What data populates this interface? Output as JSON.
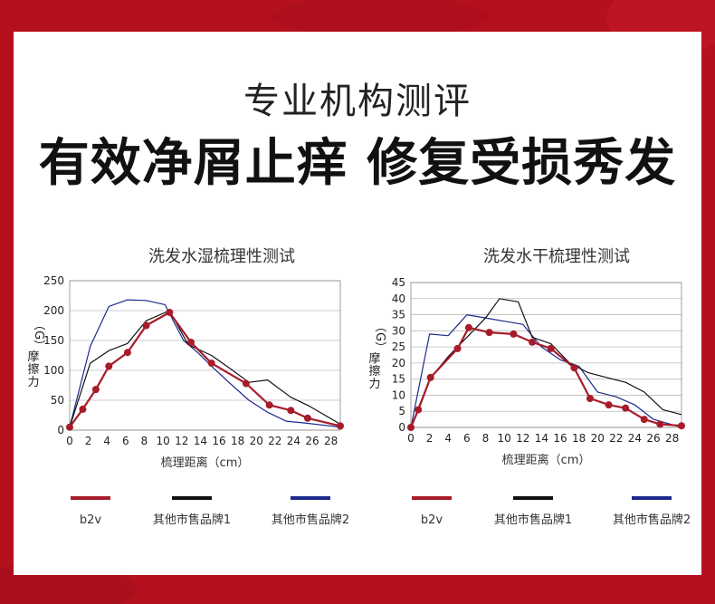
{
  "header": {
    "subtitle": "专业机构测评",
    "title": "有效净屑止痒 修复受损秀发"
  },
  "colors": {
    "background": "#b5101e",
    "b2v": "#a71c2a",
    "other1": "#111111",
    "other2": "#1d2a8c"
  },
  "chart_data": [
    {
      "type": "line",
      "title": "洗发水湿梳理性测试",
      "xlabel": "梳理距离（cm）",
      "ylabel": "摩擦力（G）",
      "ylabel_chars": [
        "摩",
        "擦",
        "力"
      ],
      "ylabel_unit": "（G）",
      "xlim": [
        0,
        29
      ],
      "ylim": [
        0,
        250
      ],
      "x_ticks": [
        0,
        2,
        4,
        6,
        8,
        10,
        12,
        14,
        16,
        18,
        20,
        22,
        24,
        26,
        28
      ],
      "y_ticks": [
        0,
        50,
        100,
        150,
        200,
        250
      ],
      "grid": "horizontal",
      "series": [
        {
          "name": "b2v",
          "color": "#a71c2a",
          "markers": true,
          "x": [
            0,
            1.4,
            2.8,
            4.2,
            6.2,
            8.2,
            10.7,
            13,
            15.2,
            18.9,
            21.4,
            23.7,
            25.5,
            29
          ],
          "y": [
            5,
            35,
            68,
            107,
            130,
            175,
            197,
            147,
            112,
            78,
            42,
            33,
            20,
            7
          ]
        },
        {
          "name": "其他市售品牌1",
          "color": "#111111",
          "markers": false,
          "x": [
            0,
            2.2,
            4.2,
            6.2,
            8.2,
            10.7,
            12.7,
            15.2,
            17.2,
            19.2,
            21.2,
            23.7,
            25.7,
            29
          ],
          "y": [
            5,
            112,
            133,
            145,
            183,
            200,
            143,
            125,
            103,
            80,
            84,
            55,
            40,
            10
          ]
        },
        {
          "name": "其他市售品牌2",
          "color": "#1d2a8c",
          "markers": false,
          "x": [
            0,
            2.2,
            4.2,
            6.2,
            8.2,
            10.2,
            12.2,
            13.7,
            15.2,
            17.2,
            19.2,
            21.2,
            23.2,
            25.2,
            29
          ],
          "y": [
            5,
            140,
            207,
            218,
            217,
            210,
            150,
            130,
            107,
            78,
            50,
            30,
            15,
            12,
            5
          ]
        }
      ]
    },
    {
      "type": "line",
      "title": "洗发水干梳理性测试",
      "xlabel": "梳理距离（cm）",
      "ylabel": "摩擦力（G）",
      "ylabel_chars": [
        "摩",
        "擦",
        "力"
      ],
      "ylabel_unit": "（G）",
      "xlim": [
        0,
        29
      ],
      "ylim": [
        0,
        45
      ],
      "x_ticks": [
        0,
        2,
        4,
        6,
        8,
        10,
        12,
        14,
        16,
        18,
        20,
        22,
        24,
        26,
        28
      ],
      "y_ticks": [
        0,
        5,
        10,
        15,
        20,
        25,
        30,
        35,
        40,
        45
      ],
      "grid": "horizontal",
      "series": [
        {
          "name": "b2v",
          "color": "#a71c2a",
          "markers": true,
          "x": [
            0,
            0.8,
            2.1,
            5,
            6.2,
            8.4,
            11,
            13,
            15,
            17.5,
            19.2,
            21.2,
            23,
            25,
            26.7,
            29
          ],
          "y": [
            0,
            5.5,
            15.5,
            24.5,
            31,
            29.5,
            29,
            26.5,
            24.5,
            18.5,
            9,
            7,
            6,
            2.5,
            1,
            0.5
          ]
        },
        {
          "name": "其他市售品牌1",
          "color": "#111111",
          "markers": false,
          "x": [
            0,
            2,
            4,
            6,
            8,
            9.5,
            11.5,
            13,
            15,
            17,
            19,
            21,
            23,
            25,
            27,
            29
          ],
          "y": [
            0,
            15,
            22,
            28,
            34,
            40,
            39,
            28,
            26,
            20,
            17,
            15.5,
            14,
            11,
            5.5,
            4
          ]
        },
        {
          "name": "其他市售品牌2",
          "color": "#1d2a8c",
          "markers": false,
          "x": [
            0,
            2,
            4,
            6,
            8,
            10,
            12,
            14,
            16,
            18,
            20,
            22,
            24,
            26,
            29
          ],
          "y": [
            0,
            29,
            28.5,
            35,
            34,
            33,
            32,
            25,
            21,
            19,
            11,
            9.5,
            7,
            2.5,
            0
          ]
        }
      ]
    }
  ],
  "legend": [
    {
      "label": "b2v",
      "color": "#a71c2a"
    },
    {
      "label": "其他市售品牌1",
      "color": "#111111"
    },
    {
      "label": "其他市售品牌2",
      "color": "#1d2a8c"
    }
  ]
}
